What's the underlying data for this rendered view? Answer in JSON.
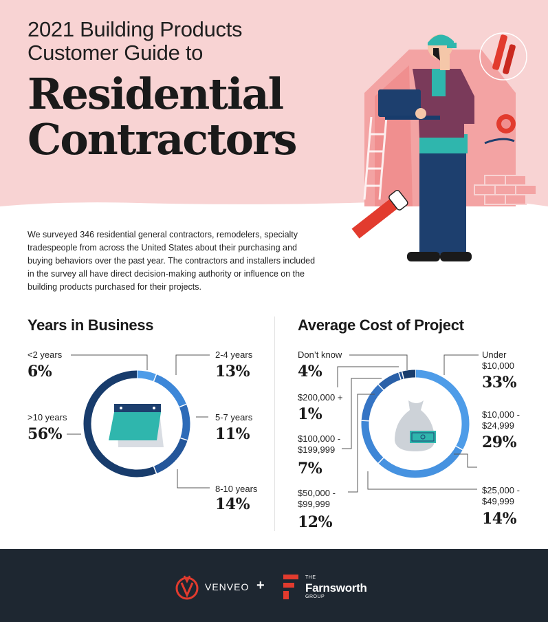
{
  "header": {
    "subtitle_line1": "2021 Building Products",
    "subtitle_line2": "Customer Guide to",
    "title_line1": "Residential",
    "title_line2": "Contractors"
  },
  "intro": {
    "text": "We surveyed 346 residential general contractors, remodelers, specialty tradespeople from across the United States about their purchasing and buying behaviors over the past year. The contractors and installers included in the survey all have direct decision-making authority or influence on the building products purchased for their projects."
  },
  "colors": {
    "hero_pink": "#f8d3d3",
    "house_pink": "#f3a3a3",
    "navy": "#1d3f6e",
    "mid_blue": "#2d6bb8",
    "light_blue": "#4e9ce8",
    "teal": "#2fb6ad",
    "footer": "#1e2731",
    "brand_red": "#e23b2e"
  },
  "chart_data": [
    {
      "type": "pie",
      "title": "Years in Business",
      "categories": [
        "<2 years",
        "2-4 years",
        "5-7 years",
        "8-10 years",
        ">10 years"
      ],
      "values": [
        6,
        13,
        11,
        14,
        56
      ],
      "labels": [
        "6%",
        "13%",
        "11%",
        "14%",
        "56%"
      ],
      "colors": [
        "#4e9ce8",
        "#3d87d8",
        "#2d6bb8",
        "#24569a",
        "#183c6c"
      ]
    },
    {
      "type": "pie",
      "title": "Average Cost of Project",
      "categories": [
        "Under $10,000",
        "$10,000 - $24,999",
        "$25,000 - $49,999",
        "$50,000 - $99,999",
        "$100,000 - $199,999",
        "$200,000 +",
        "Don’t know"
      ],
      "values": [
        33,
        29,
        14,
        12,
        7,
        1,
        4
      ],
      "labels": [
        "33%",
        "29%",
        "14%",
        "12%",
        "7%",
        "1%",
        "4%"
      ],
      "colors": [
        "#4e9ce8",
        "#4692e0",
        "#3e86d6",
        "#3574c4",
        "#2a60a8",
        "#22508f",
        "#183c6c"
      ]
    }
  ],
  "years_section": {
    "lt2": {
      "label": "<2 years",
      "pct": "6%"
    },
    "y2_4": {
      "label": "2-4 years",
      "pct": "13%"
    },
    "y5_7": {
      "label": "5-7 years",
      "pct": "11%"
    },
    "y8_10": {
      "label": "8-10 years",
      "pct": "14%"
    },
    "gt10": {
      "label": ">10 years",
      "pct": "56%"
    },
    "icon": "calendar-icon"
  },
  "cost_section": {
    "dont_know": {
      "label": "Don’t know",
      "pct": "4%"
    },
    "over200": {
      "label": "$200,000 +",
      "pct": "1%"
    },
    "r100_199_l1": "$100,000 -",
    "r100_199_l2": "$199,999",
    "r100_199_pct": "7%",
    "r50_99_l1": "$50,000 -",
    "r50_99_l2": "$99,999",
    "r50_99_pct": "12%",
    "under10_l1": "Under",
    "under10_l2": "$10,000",
    "under10_pct": "33%",
    "r10_24_l1": "$10,000 -",
    "r10_24_l2": "$24,999",
    "r10_24_pct": "29%",
    "r25_49_l1": "$25,000 -",
    "r25_49_l2": "$49,999",
    "r25_49_pct": "14%",
    "icon": "money-bag-icon"
  },
  "footer": {
    "brand1": "VENVEO",
    "plus": "+",
    "brand2_the": "THE",
    "brand2_name": "Farnsworth",
    "brand2_group": "GROUP"
  }
}
